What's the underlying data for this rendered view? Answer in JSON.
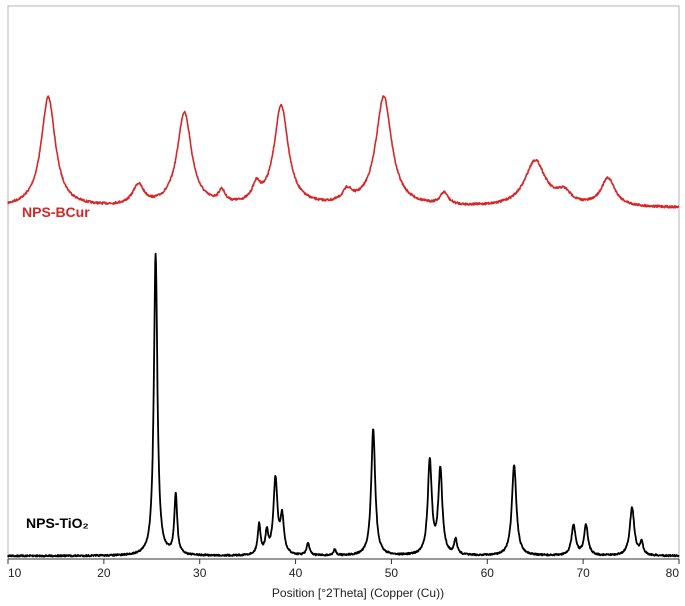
{
  "chart_data": {
    "type": "line",
    "title": "",
    "xlabel": "Position [°2Theta] (Copper (Cu))",
    "ylabel": "",
    "xlim": [
      10,
      80
    ],
    "xticks": [
      10,
      20,
      30,
      40,
      50,
      60,
      70,
      80
    ],
    "xtick_labels": [
      "10",
      "20",
      "30",
      "40",
      "50",
      "60",
      "70",
      "80"
    ],
    "grid": false,
    "legend": "none (labels placed on plot)",
    "series": [
      {
        "name": "NPS-BCur",
        "color": "#d62728",
        "baseline": 0.1,
        "peaks": [
          {
            "x": 14.2,
            "height": 0.55,
            "width": 0.9
          },
          {
            "x": 23.6,
            "height": 0.1,
            "width": 0.7
          },
          {
            "x": 28.4,
            "height": 0.47,
            "width": 0.9
          },
          {
            "x": 32.3,
            "height": 0.06,
            "width": 0.4
          },
          {
            "x": 35.9,
            "height": 0.08,
            "width": 0.5
          },
          {
            "x": 38.5,
            "height": 0.5,
            "width": 0.9
          },
          {
            "x": 45.4,
            "height": 0.06,
            "width": 0.6
          },
          {
            "x": 49.2,
            "height": 0.55,
            "width": 1.0
          },
          {
            "x": 55.5,
            "height": 0.06,
            "width": 0.5
          },
          {
            "x": 65.0,
            "height": 0.23,
            "width": 1.3
          },
          {
            "x": 68.0,
            "height": 0.06,
            "width": 0.9
          },
          {
            "x": 72.6,
            "height": 0.14,
            "width": 0.9
          }
        ]
      },
      {
        "name": "NPS-TiO₂",
        "color": "#000000",
        "baseline": 0.01,
        "peaks": [
          {
            "x": 25.4,
            "height": 1.0,
            "width": 0.22
          },
          {
            "x": 27.5,
            "height": 0.2,
            "width": 0.18
          },
          {
            "x": 36.2,
            "height": 0.1,
            "width": 0.18
          },
          {
            "x": 37.0,
            "height": 0.07,
            "width": 0.18
          },
          {
            "x": 37.9,
            "height": 0.25,
            "width": 0.25
          },
          {
            "x": 38.6,
            "height": 0.12,
            "width": 0.22
          },
          {
            "x": 41.3,
            "height": 0.04,
            "width": 0.18
          },
          {
            "x": 44.1,
            "height": 0.02,
            "width": 0.15
          },
          {
            "x": 48.1,
            "height": 0.42,
            "width": 0.25
          },
          {
            "x": 54.0,
            "height": 0.31,
            "width": 0.25
          },
          {
            "x": 55.1,
            "height": 0.28,
            "width": 0.25
          },
          {
            "x": 56.7,
            "height": 0.05,
            "width": 0.18
          },
          {
            "x": 62.8,
            "height": 0.3,
            "width": 0.28
          },
          {
            "x": 69.0,
            "height": 0.1,
            "width": 0.25
          },
          {
            "x": 70.3,
            "height": 0.1,
            "width": 0.25
          },
          {
            "x": 75.1,
            "height": 0.16,
            "width": 0.28
          },
          {
            "x": 76.1,
            "height": 0.04,
            "width": 0.2
          }
        ]
      }
    ]
  }
}
